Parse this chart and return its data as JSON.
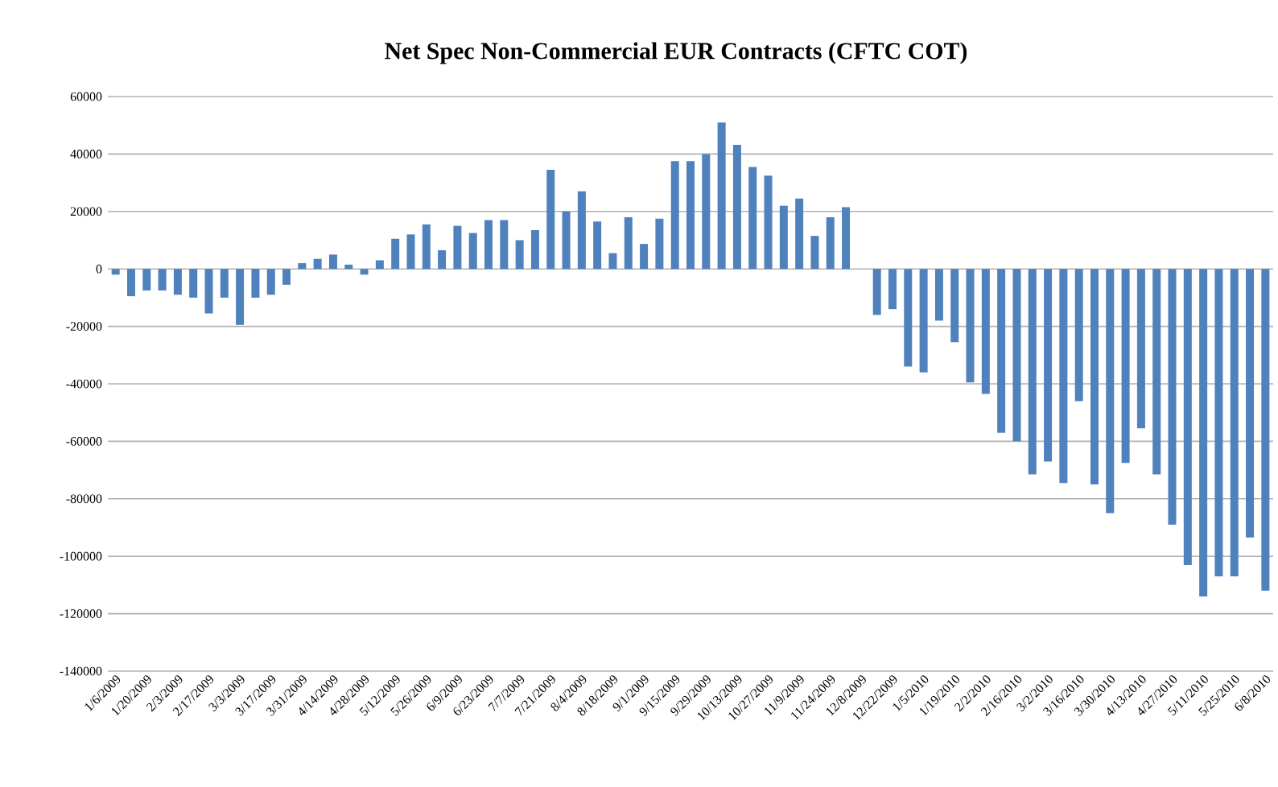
{
  "chart_data": {
    "type": "bar",
    "title": "Net Spec Non-Commercial EUR Contracts (CFTC COT)",
    "categories": [
      "1/6/2009",
      null,
      "1/20/2009",
      null,
      "2/3/2009",
      null,
      "2/17/2009",
      null,
      "3/3/2009",
      null,
      "3/17/2009",
      null,
      "3/31/2009",
      null,
      "4/14/2009",
      null,
      "4/28/2009",
      null,
      "5/12/2009",
      null,
      "5/26/2009",
      null,
      "6/9/2009",
      null,
      "6/23/2009",
      null,
      "7/7/2009",
      null,
      "7/21/2009",
      null,
      "8/4/2009",
      null,
      "8/18/2009",
      null,
      "9/1/2009",
      null,
      "9/15/2009",
      null,
      "9/29/2009",
      null,
      "10/13/2009",
      null,
      "10/27/2009",
      null,
      "11/9/2009",
      null,
      "11/24/2009",
      null,
      "12/8/2009",
      null,
      "12/22/2009",
      null,
      "1/5/2010",
      null,
      "1/19/2010",
      null,
      "2/2/2010",
      null,
      "2/16/2010",
      null,
      "3/2/2010",
      null,
      "3/16/2010",
      null,
      "3/30/2010",
      null,
      "4/13/2010",
      null,
      "4/27/2010",
      null,
      "5/11/2010",
      null,
      "5/25/2010",
      null,
      "6/8/2010"
    ],
    "values": [
      -2000,
      -9500,
      -7500,
      -7500,
      -9000,
      -10000,
      -15500,
      -10000,
      -19500,
      -10000,
      -9000,
      -5500,
      2000,
      3500,
      5000,
      1500,
      -2000,
      3000,
      10500,
      12000,
      15500,
      6500,
      15000,
      12500,
      17000,
      17000,
      10000,
      13500,
      34500,
      20000,
      27000,
      16500,
      5500,
      18000,
      8700,
      17500,
      37500,
      37500,
      40000,
      51000,
      43200,
      35500,
      32500,
      22000,
      24500,
      11500,
      18000,
      21500,
      null,
      -16000,
      -14000,
      -34000,
      -36000,
      -18000,
      -25500,
      -39500,
      -43500,
      -57000,
      -60000,
      -71500,
      -67000,
      -74500,
      -46000,
      -75000,
      -85000,
      -67500,
      -55500,
      -71500,
      -89000,
      -103000,
      -114000,
      -107000,
      -107000,
      -93500,
      -112000
    ],
    "color": "#4f81bd",
    "ylim": [
      -140000,
      60000
    ],
    "yticks": [
      -140000,
      -120000,
      -100000,
      -80000,
      -60000,
      -40000,
      -20000,
      0,
      20000,
      40000,
      60000
    ],
    "grid": "y"
  }
}
